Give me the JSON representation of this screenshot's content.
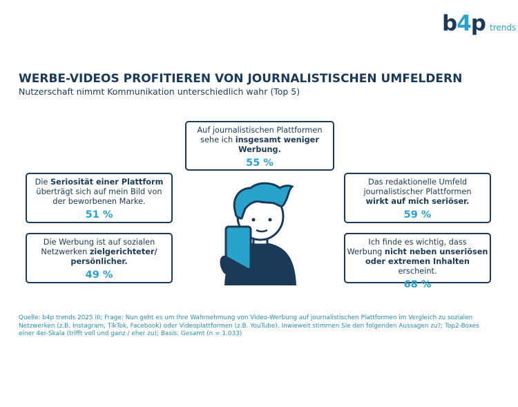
{
  "logo": {
    "brand_start": "b",
    "brand_accent": "4",
    "brand_end": "p",
    "tag": "trends"
  },
  "header": {
    "title": "WERBE-VIDEOS PROFITIEREN VON JOURNALISTISCHEN UMFELDERN",
    "subtitle": "Nutzerschaft nimmt Kommunikation unterschiedlich wahr (Top 5)"
  },
  "boxes": [
    {
      "lines": [
        [
          {
            "text": "Auf journalistischen Plattformen",
            "bold": false
          }
        ],
        [
          {
            "text": "sehe ich ",
            "bold": false
          },
          {
            "text": "insgesamt weniger",
            "bold": true
          }
        ],
        [
          {
            "text": "Werbung.",
            "bold": true
          }
        ]
      ],
      "value": "55 %"
    },
    {
      "lines": [
        [
          {
            "text": "Die ",
            "bold": false
          },
          {
            "text": "Seriosität einer Plattform",
            "bold": true
          }
        ],
        [
          {
            "text": "überträgt sich auf mein Bild von",
            "bold": false
          }
        ],
        [
          {
            "text": "der beworbenen Marke.",
            "bold": false
          }
        ]
      ],
      "value": "51 %"
    },
    {
      "lines": [
        [
          {
            "text": "Die Werbung ist auf sozialen",
            "bold": false
          }
        ],
        [
          {
            "text": "Netzwerken ",
            "bold": false
          },
          {
            "text": "zielgerichteter/",
            "bold": true
          }
        ],
        [
          {
            "text": "persönlicher.",
            "bold": true
          }
        ]
      ],
      "value": "49 %"
    },
    {
      "lines": [
        [
          {
            "text": "Das redaktionelle Umfeld",
            "bold": false
          }
        ],
        [
          {
            "text": "journalistischer Plattformen",
            "bold": false
          }
        ],
        [
          {
            "text": "wirkt auf mich seriöser.",
            "bold": true
          }
        ]
      ],
      "value": "59 %"
    },
    {
      "lines": [
        [
          {
            "text": "Ich finde es wichtig, dass",
            "bold": false
          }
        ],
        [
          {
            "text": "Werbung ",
            "bold": false
          },
          {
            "text": "nicht neben unseriösen",
            "bold": true
          }
        ],
        [
          {
            "text": "oder extremen Inhalten",
            "bold": true
          },
          {
            "text": " erscheint.",
            "bold": false
          }
        ]
      ],
      "value": "68 %"
    }
  ],
  "footer": {
    "lines": [
      "Quelle: b4p trends 2025 III; Frage: Nun geht es um Ihre Wahrnehmung von Video-Werbung auf journalistischen Plattformen im Vergleich zu sozialen",
      "Netzwerken (z.B. Instagram, TikTok, Facebook) oder Videoplattformen (z.B. YouTube). Inwieweit stimmen Sie den folgenden Aussagen zu?; Top2-Boxes",
      "einer 4er-Skala (trifft voll und ganz / eher zu); Basis: Gesamt (n = 1.033)"
    ]
  }
}
